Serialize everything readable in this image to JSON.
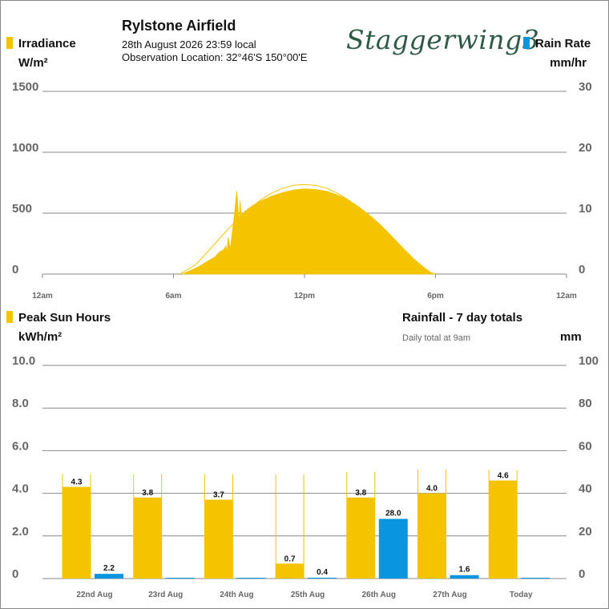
{
  "header": {
    "station": "Rylstone Airfield",
    "datetime": "28th August 2026  23:59 local",
    "location": "Observation Location: 32°46'S 150°00'E",
    "brand": "Staggerwing3"
  },
  "colors": {
    "irradiance": "#f5c400",
    "rain": "#0a95e0",
    "grid": "#888888",
    "axis_text": "#666666",
    "brand": "#2e5a46"
  },
  "top_panel": {
    "left_legend": "Irradiance",
    "left_unit": "W/m²",
    "right_legend": "Rain Rate",
    "right_unit": "mm/hr",
    "left_ticks": [
      "1500",
      "1000",
      "500",
      "0"
    ],
    "right_ticks": [
      "30",
      "20",
      "10",
      "0"
    ],
    "x_ticks": [
      "12am",
      "6am",
      "12pm",
      "6pm",
      "12am"
    ]
  },
  "bottom_panel": {
    "left_legend": "Peak Sun Hours",
    "left_unit": "kWh/m²",
    "right_title": "Rainfall - 7 day totals",
    "right_subtitle": "Daily total at 9am",
    "right_unit": "mm",
    "left_ticks": [
      "10.0",
      "8.0",
      "6.0",
      "4.0",
      "2.0",
      "0"
    ],
    "right_ticks": [
      "100",
      "80",
      "60",
      "40",
      "20",
      "0"
    ]
  },
  "chart_data": [
    {
      "type": "area",
      "x_unit": "hour of day",
      "xlim": [
        0,
        24
      ],
      "ylim": [
        0,
        1500
      ],
      "y2lim": [
        0,
        30
      ],
      "irradiance_series": [
        [
          6.4,
          0
        ],
        [
          6.8,
          30
        ],
        [
          7.2,
          65
        ],
        [
          7.6,
          110
        ],
        [
          7.9,
          140
        ],
        [
          8.1,
          180
        ],
        [
          8.3,
          200
        ],
        [
          8.4,
          230
        ],
        [
          8.45,
          170
        ],
        [
          8.5,
          300
        ],
        [
          8.6,
          210
        ],
        [
          8.8,
          500
        ],
        [
          8.9,
          680
        ],
        [
          9.0,
          420
        ],
        [
          9.05,
          600
        ],
        [
          9.1,
          480
        ],
        [
          9.3,
          520
        ],
        [
          9.6,
          560
        ],
        [
          10.0,
          600
        ],
        [
          10.5,
          640
        ],
        [
          11.0,
          670
        ],
        [
          11.5,
          690
        ],
        [
          12.0,
          700
        ],
        [
          12.5,
          695
        ],
        [
          13.0,
          680
        ],
        [
          13.5,
          650
        ],
        [
          14.0,
          610
        ],
        [
          14.5,
          550
        ],
        [
          15.0,
          480
        ],
        [
          15.5,
          400
        ],
        [
          16.0,
          310
        ],
        [
          16.5,
          215
        ],
        [
          17.0,
          125
        ],
        [
          17.5,
          50
        ],
        [
          17.8,
          10
        ],
        [
          18.0,
          0
        ]
      ],
      "clear_sky_series": [
        [
          6.3,
          0
        ],
        [
          7.0,
          75
        ],
        [
          7.5,
          170
        ],
        [
          8.0,
          270
        ],
        [
          8.5,
          370
        ],
        [
          9.0,
          460
        ],
        [
          9.5,
          540
        ],
        [
          10.0,
          610
        ],
        [
          10.5,
          665
        ],
        [
          11.0,
          705
        ],
        [
          11.5,
          728
        ],
        [
          12.0,
          735
        ],
        [
          12.5,
          728
        ],
        [
          13.0,
          705
        ],
        [
          13.5,
          665
        ],
        [
          14.0,
          610
        ],
        [
          14.5,
          540
        ],
        [
          15.0,
          460
        ],
        [
          15.5,
          370
        ],
        [
          16.0,
          270
        ],
        [
          16.5,
          175
        ],
        [
          17.0,
          90
        ],
        [
          17.5,
          25
        ],
        [
          18.0,
          0
        ]
      ],
      "rain_rate_series": []
    },
    {
      "type": "bar",
      "categories": [
        "22nd Aug",
        "23rd Aug",
        "24th Aug",
        "25th Aug",
        "26th Aug",
        "27th Aug",
        "Today"
      ],
      "series": [
        {
          "name": "Peak Sun Hours",
          "values": [
            4.3,
            3.8,
            3.7,
            0.7,
            3.8,
            4.0,
            4.6
          ],
          "clear_sky_values": [
            4.9,
            4.9,
            4.9,
            4.9,
            5.0,
            5.1,
            5.1
          ],
          "labels": [
            "4.3",
            "3.8",
            "3.7",
            "0.7",
            "3.8",
            "4.0",
            "4.6"
          ]
        },
        {
          "name": "Rainfall - 7 day totals",
          "values": [
            2.2,
            0,
            0,
            0.4,
            28.0,
            1.6,
            0
          ],
          "labels": [
            "2.2",
            "",
            "",
            "0.4",
            "28.0",
            "1.6",
            ""
          ]
        }
      ],
      "ylim": [
        0,
        10
      ],
      "y2lim": [
        0,
        100
      ]
    }
  ]
}
